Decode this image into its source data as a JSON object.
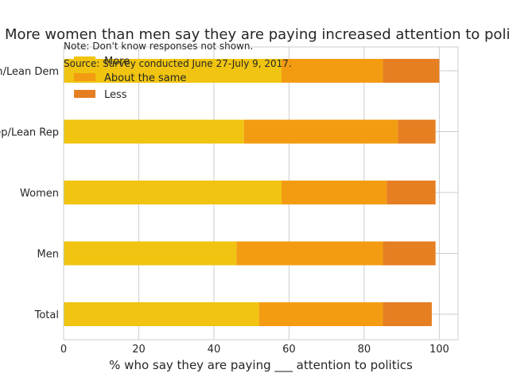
{
  "chart_data": {
    "type": "bar",
    "orientation": "horizontal",
    "stacked": true,
    "title": "More women than men say they are paying increased attention to politics",
    "xlabel": "% who say they are paying ___ attention to politics",
    "ylabel": "",
    "xlim": [
      0,
      105
    ],
    "xticks": [
      0,
      20,
      40,
      60,
      80,
      100
    ],
    "grid": true,
    "legend_position": "top-left",
    "categories": [
      "Total",
      "Men",
      "Women",
      "Rep/Lean Rep",
      "Dem/Lean Dem"
    ],
    "series": [
      {
        "name": "More",
        "color": "#f0c410",
        "values": [
          52,
          46,
          58,
          48,
          58
        ]
      },
      {
        "name": "About the same",
        "color": "#f39c12",
        "values": [
          33,
          39,
          28,
          41,
          27
        ]
      },
      {
        "name": "Less",
        "color": "#e67e22",
        "values": [
          13,
          14,
          13,
          10,
          15
        ]
      }
    ],
    "annotations": [
      "Note: Don't know responses not shown.",
      "Source: Survey conducted June 27-July 9, 2017."
    ]
  }
}
